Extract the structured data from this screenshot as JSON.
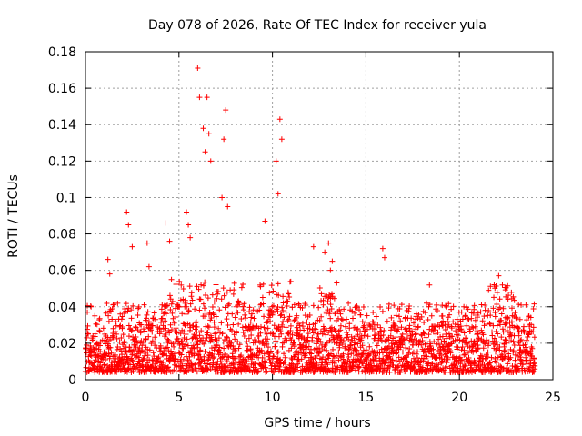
{
  "chart_data": {
    "type": "scatter",
    "title": "Day 078 of 2026, Rate Of TEC Index for receiver yula",
    "xlabel": "GPS time / hours",
    "ylabel": "ROTI / TECUs",
    "xlim": [
      0,
      25
    ],
    "ylim": [
      0,
      0.18
    ],
    "xticks": [
      0,
      5,
      10,
      15,
      20,
      25
    ],
    "xtick_labels": [
      "0",
      "5",
      "10",
      "15",
      "20",
      "25"
    ],
    "yticks": [
      0,
      0.02,
      0.04,
      0.06,
      0.08,
      0.1,
      0.12,
      0.14,
      0.16,
      0.18
    ],
    "ytick_labels": [
      "0",
      "0.02",
      "0.04",
      "0.06",
      "0.08",
      "0.1",
      "0.12",
      "0.14",
      "0.16",
      "0.18"
    ],
    "grid": true,
    "marker": "+",
    "color": "#ff0000",
    "series": [
      {
        "name": "ROTI",
        "x": [
          0.1,
          0.3,
          0.5,
          1.2,
          1.3,
          2.2,
          2.3,
          2.5,
          3.3,
          3.4,
          4.3,
          4.5,
          4.6,
          5.4,
          5.5,
          5.6,
          6.0,
          6.1,
          6.3,
          6.4,
          6.5,
          6.6,
          6.7,
          7.3,
          7.4,
          7.5,
          7.6,
          9.6,
          10.2,
          10.3,
          10.4,
          10.5,
          12.2,
          12.8,
          13.0,
          13.1,
          13.2,
          15.9,
          16.0,
          18.4,
          22.1,
          22.3
        ],
        "y": [
          0.037,
          0.04,
          0.035,
          0.066,
          0.058,
          0.092,
          0.085,
          0.073,
          0.075,
          0.062,
          0.086,
          0.076,
          0.055,
          0.092,
          0.085,
          0.078,
          0.171,
          0.155,
          0.138,
          0.125,
          0.155,
          0.135,
          0.12,
          0.1,
          0.132,
          0.148,
          0.095,
          0.087,
          0.12,
          0.102,
          0.143,
          0.132,
          0.073,
          0.07,
          0.075,
          0.06,
          0.065,
          0.072,
          0.067,
          0.052,
          0.057,
          0.052
        ]
      }
    ],
    "background_band": {
      "typical_min": 0.004,
      "typical_max": 0.03,
      "x_step": 0.02
    }
  }
}
